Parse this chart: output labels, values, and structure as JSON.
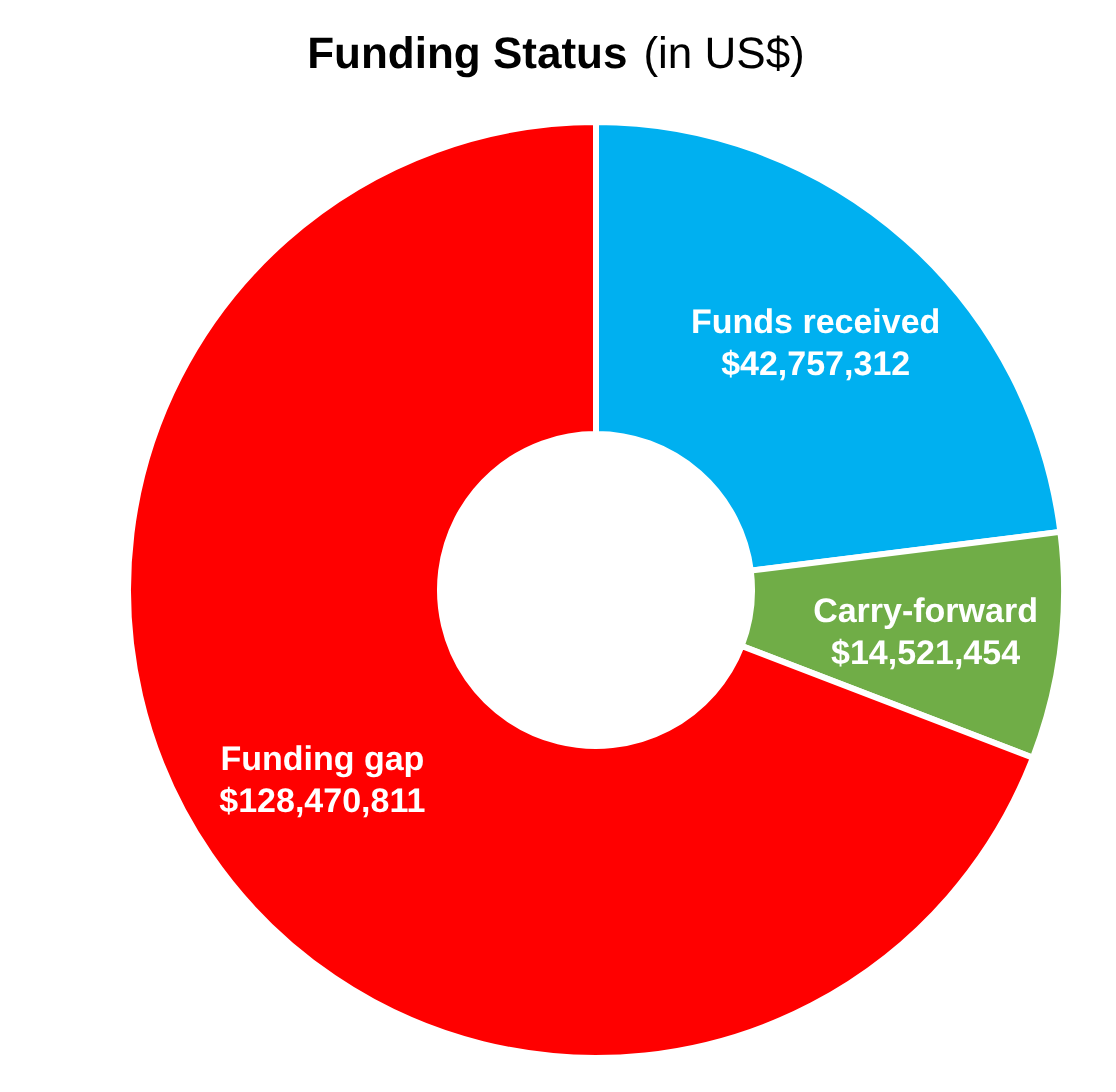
{
  "chart_data": {
    "type": "donut",
    "title": "Funding Status",
    "subtitle": "(in US$)",
    "categories": [
      "Funds received",
      "Carry-forward",
      "Funding gap"
    ],
    "values": [
      42757312,
      14521454,
      128470811
    ],
    "value_labels": [
      "$42,757,312",
      "$14,521,454",
      "$128,470,811"
    ],
    "colors": [
      "#00b0f0",
      "#70ad47",
      "#ff0000"
    ]
  }
}
